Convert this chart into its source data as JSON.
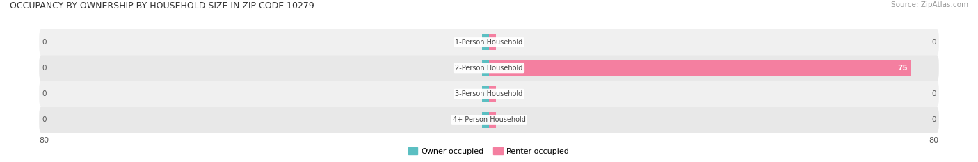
{
  "title": "OCCUPANCY BY OWNERSHIP BY HOUSEHOLD SIZE IN ZIP CODE 10279",
  "source": "Source: ZipAtlas.com",
  "categories": [
    "1-Person Household",
    "2-Person Household",
    "3-Person Household",
    "4+ Person Household"
  ],
  "owner_values": [
    0,
    0,
    0,
    0
  ],
  "renter_values": [
    0,
    75,
    0,
    0
  ],
  "owner_color": "#5bbfc2",
  "renter_color": "#f47fa0",
  "axis_limit": 80,
  "label_color": "#444444",
  "title_color": "#333333",
  "source_color": "#999999",
  "legend_owner_label": "Owner-occupied",
  "legend_renter_label": "Renter-occupied",
  "background_color": "#ffffff",
  "bar_height": 0.62,
  "row_bg_color_odd": "#f0f0f0",
  "row_bg_color_even": "#e8e8e8",
  "value_label_color": "#555555",
  "value_label_color_white": "#ffffff",
  "stub_size": 1.2,
  "fig_width": 14.06,
  "fig_height": 2.33,
  "dpi": 100
}
